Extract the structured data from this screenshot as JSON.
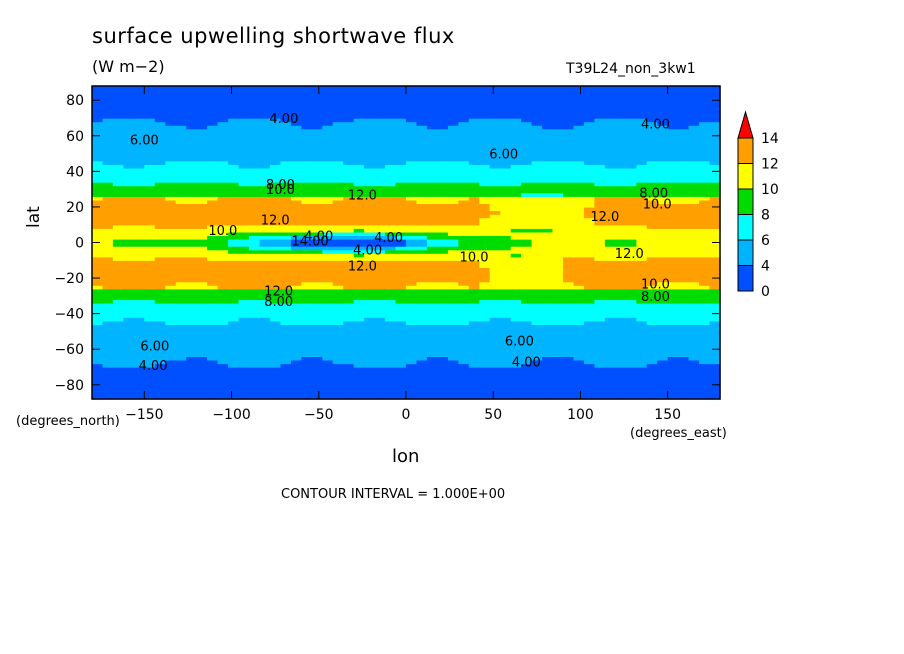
{
  "chart_data": {
    "type": "heatmap",
    "title": "surface upwelling shortwave flux",
    "units": "(W m−2)",
    "run_id": "T39L24_non_3kw1",
    "xlabel": "lon",
    "ylabel": "lat",
    "x_units": "(degrees_east)",
    "y_units": "(degrees_north)",
    "contour_interval": "CONTOUR INTERVAL = 1.000E+00",
    "xlim": [
      -180,
      180
    ],
    "ylim": [
      -88,
      88
    ],
    "x_ticks": [
      -150,
      -100,
      -50,
      0,
      50,
      100,
      150
    ],
    "y_ticks": [
      -80,
      -60,
      -40,
      -20,
      0,
      20,
      40,
      60,
      80
    ],
    "colorbar": {
      "levels": [
        0,
        2,
        4,
        6,
        8,
        10,
        12,
        14
      ],
      "tick_labels": [
        "0",
        "4",
        "6",
        "8",
        "10",
        "12",
        "14"
      ],
      "colors": [
        "#0050ff",
        "#00b4ff",
        "#00ffff",
        "#00dc00",
        "#ffff00",
        "#ffa000",
        "#ff0000"
      ]
    },
    "contour_labels": [
      {
        "text": "4.00",
        "lon": -70,
        "lat": 70
      },
      {
        "text": "4.00",
        "lon": 143,
        "lat": 67
      },
      {
        "text": "6.00",
        "lon": -150,
        "lat": 58
      },
      {
        "text": "6.00",
        "lon": 56,
        "lat": 50
      },
      {
        "text": "8.00",
        "lon": -72,
        "lat": 33
      },
      {
        "text": "10.0",
        "lon": -72,
        "lat": 30
      },
      {
        "text": "12.0",
        "lon": -25,
        "lat": 27
      },
      {
        "text": "8.00",
        "lon": 142,
        "lat": 28
      },
      {
        "text": "10.0",
        "lon": 144,
        "lat": 22
      },
      {
        "text": "12.0",
        "lon": 114,
        "lat": 15
      },
      {
        "text": "12.0",
        "lon": -75,
        "lat": 13
      },
      {
        "text": "10.0",
        "lon": -105,
        "lat": 7
      },
      {
        "text": "4.00",
        "lon": -50,
        "lat": 4
      },
      {
        "text": "4.00",
        "lon": -10,
        "lat": 3
      },
      {
        "text": "14.00",
        "lon": -55,
        "lat": 1
      },
      {
        "text": "4.00",
        "lon": -22,
        "lat": -4
      },
      {
        "text": "10.0",
        "lon": 39,
        "lat": -8
      },
      {
        "text": "12.0",
        "lon": 128,
        "lat": -6
      },
      {
        "text": "12.0",
        "lon": -25,
        "lat": -13
      },
      {
        "text": "10.0",
        "lon": 143,
        "lat": -23
      },
      {
        "text": "12.0",
        "lon": -73,
        "lat": -27
      },
      {
        "text": "8.00",
        "lon": -73,
        "lat": -33
      },
      {
        "text": "8.00",
        "lon": 143,
        "lat": -30
      },
      {
        "text": "6.00",
        "lon": -144,
        "lat": -58
      },
      {
        "text": "6.00",
        "lon": 65,
        "lat": -55
      },
      {
        "text": "4.00",
        "lon": -145,
        "lat": -69
      },
      {
        "text": "4.00",
        "lon": 69,
        "lat": -67
      }
    ]
  }
}
